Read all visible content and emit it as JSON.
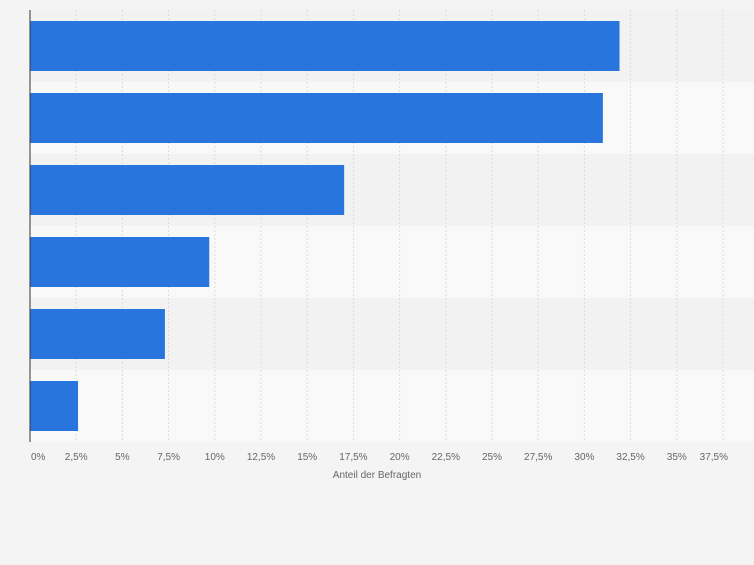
{
  "chart_data": {
    "type": "bar",
    "orientation": "horizontal",
    "categories": [
      "",
      "",
      "",
      "",
      "",
      ""
    ],
    "values": [
      31.9,
      31.0,
      17.0,
      9.7,
      7.3,
      2.6
    ],
    "title": "",
    "xlabel": "Anteil der Befragten",
    "ylabel": "",
    "xlim": [
      0,
      37.5
    ],
    "x_ticks": [
      "0%",
      "2,5%",
      "5%",
      "7,5%",
      "10%",
      "12,5%",
      "15%",
      "17,5%",
      "20%",
      "22,5%",
      "25%",
      "27,5%",
      "30%",
      "32,5%",
      "35%",
      "37,5%"
    ],
    "grid": true,
    "bar_color": "#2876dd",
    "band_colors": [
      "#f2f2f2",
      "#f9f9f9"
    ]
  }
}
